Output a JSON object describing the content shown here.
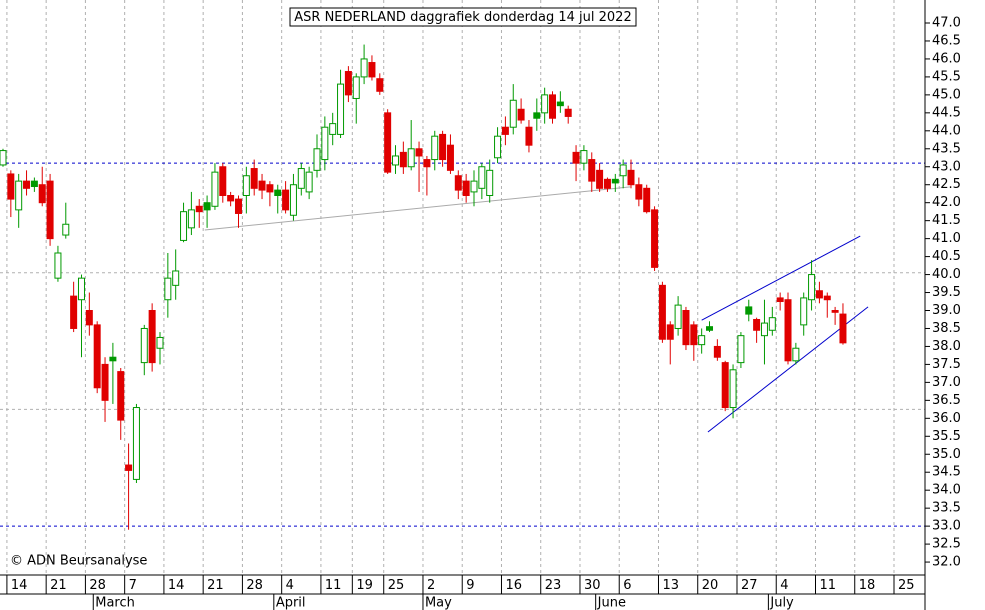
{
  "chart_data": {
    "type": "candlestick",
    "title": "ASR NEDERLAND daggrafiek donderdag 14 jul 2022",
    "copyright": "© ADN Beursanalyse",
    "up_color": "#009900",
    "down_color": "#e00000",
    "x": [
      0,
      1,
      2,
      3,
      4,
      5,
      6,
      7,
      8,
      9,
      10,
      11,
      12,
      13,
      14,
      15,
      16,
      17,
      18,
      19,
      20,
      21,
      22,
      23,
      24,
      25,
      26,
      27,
      28,
      29,
      30,
      31,
      32,
      33,
      34,
      35,
      36,
      37,
      38,
      39,
      40,
      41,
      42,
      43,
      44,
      45,
      46,
      47,
      48,
      49,
      50,
      51,
      52,
      53,
      54,
      55,
      56,
      57,
      58,
      59,
      60,
      61,
      62,
      63,
      64,
      65,
      66,
      67,
      68,
      69,
      70,
      71,
      72,
      73,
      74,
      75,
      76,
      77,
      78,
      79,
      80,
      81,
      82,
      83,
      84,
      85,
      86,
      87,
      88,
      89,
      90,
      91,
      92,
      93,
      94,
      95,
      96,
      97,
      98,
      99,
      100,
      101,
      102,
      103,
      104,
      105,
      106,
      107
    ],
    "open": [
      43.05,
      42.8,
      41.8,
      42.6,
      42.45,
      42.5,
      42.6,
      39.9,
      41.1,
      39.4,
      39.3,
      39.0,
      38.6,
      37.5,
      37.6,
      37.3,
      34.7,
      34.3,
      37.55,
      39.0,
      37.95,
      39.3,
      39.7,
      40.95,
      41.3,
      41.9,
      41.8,
      41.9,
      43.0,
      42.2,
      42.1,
      42.2,
      42.95,
      42.6,
      42.5,
      42.2,
      42.35,
      41.65,
      42.4,
      42.3,
      42.9,
      43.2,
      43.9,
      43.9,
      45.65,
      44.9,
      45.5,
      45.9,
      45.45,
      44.5,
      43.05,
      43.4,
      43.0,
      43.5,
      43.2,
      43.2,
      43.9,
      43.6,
      42.75,
      42.6,
      42.3,
      42.4,
      42.2,
      43.25,
      44.1,
      44.1,
      44.6,
      44.1,
      44.35,
      44.5,
      45.0,
      44.7,
      44.6,
      43.4,
      43.1,
      43.2,
      42.9,
      42.65,
      42.55,
      42.75,
      42.9,
      42.5,
      42.4,
      41.8,
      39.7,
      38.6,
      38.5,
      39.0,
      38.6,
      38.05,
      38.45,
      38.0,
      37.55,
      36.3,
      37.55,
      38.9,
      38.75,
      38.3,
      38.45,
      39.35,
      39.3,
      37.6,
      38.6,
      39.3,
      39.55,
      39.4,
      39.0,
      38.9
    ],
    "high": [
      43.5,
      42.9,
      42.8,
      42.9,
      42.7,
      43.0,
      42.8,
      40.8,
      42.0,
      39.8,
      40.0,
      39.5,
      38.7,
      37.7,
      38.1,
      37.4,
      35.3,
      36.4,
      38.6,
      39.2,
      38.4,
      40.6,
      40.7,
      42.0,
      42.3,
      42.1,
      42.2,
      43.1,
      43.1,
      42.3,
      42.2,
      43.0,
      43.2,
      42.8,
      42.6,
      42.5,
      42.6,
      42.8,
      43.1,
      43.0,
      43.9,
      44.4,
      44.5,
      45.7,
      45.8,
      45.6,
      46.4,
      46.1,
      45.6,
      44.6,
      43.6,
      43.7,
      44.3,
      43.7,
      43.3,
      44.0,
      44.0,
      43.9,
      42.9,
      42.8,
      42.9,
      43.1,
      43.2,
      44.1,
      44.4,
      45.3,
      44.9,
      44.3,
      44.9,
      45.2,
      45.1,
      45.1,
      44.7,
      43.6,
      43.6,
      43.4,
      43.1,
      42.7,
      42.8,
      43.2,
      43.2,
      42.7,
      42.5,
      41.9,
      39.8,
      38.7,
      39.4,
      39.1,
      38.7,
      38.5,
      38.7,
      38.2,
      37.6,
      37.5,
      38.4,
      39.3,
      38.8,
      39.3,
      39.1,
      39.5,
      39.5,
      38.1,
      39.5,
      40.4,
      39.8,
      39.5,
      39.1,
      39.2
    ],
    "low": [
      43.0,
      41.6,
      41.3,
      42.2,
      42.3,
      41.9,
      40.8,
      39.8,
      41.0,
      38.4,
      37.7,
      38.3,
      36.7,
      35.9,
      36.4,
      35.4,
      32.9,
      34.2,
      37.2,
      37.3,
      37.5,
      38.8,
      39.3,
      40.9,
      41.1,
      41.3,
      41.3,
      41.8,
      42.0,
      41.9,
      41.3,
      41.7,
      42.2,
      42.1,
      41.9,
      41.7,
      41.7,
      41.5,
      42.2,
      42.1,
      42.7,
      42.9,
      43.6,
      43.8,
      44.8,
      44.2,
      45.3,
      45.4,
      45.0,
      42.8,
      42.8,
      42.8,
      42.9,
      42.3,
      42.2,
      42.9,
      43.0,
      42.8,
      42.1,
      42.0,
      41.9,
      42.1,
      42.0,
      43.1,
      43.6,
      43.9,
      44.2,
      43.4,
      44.0,
      44.2,
      44.2,
      44.5,
      44.2,
      42.6,
      42.9,
      42.3,
      42.3,
      42.3,
      42.3,
      42.4,
      42.4,
      41.9,
      41.7,
      40.1,
      38.1,
      37.5,
      38.3,
      37.9,
      37.6,
      37.8,
      38.4,
      37.6,
      36.2,
      36.0,
      37.4,
      38.7,
      38.1,
      37.5,
      38.3,
      39.0,
      37.5,
      37.5,
      38.3,
      39.0,
      39.2,
      38.8,
      38.6,
      38.05
    ],
    "close": [
      43.45,
      42.1,
      42.6,
      42.4,
      42.6,
      42.0,
      41.0,
      40.6,
      41.4,
      38.5,
      39.9,
      38.6,
      36.85,
      36.5,
      37.7,
      35.95,
      34.55,
      36.3,
      38.5,
      37.55,
      38.25,
      39.9,
      40.1,
      41.75,
      41.8,
      41.75,
      42.0,
      42.85,
      42.2,
      42.05,
      41.7,
      42.75,
      42.4,
      42.35,
      42.3,
      42.35,
      41.8,
      42.5,
      42.95,
      42.85,
      43.5,
      44.1,
      44.2,
      45.3,
      45.0,
      45.5,
      46.0,
      45.5,
      45.1,
      42.85,
      43.3,
      43.0,
      43.5,
      43.3,
      43.0,
      43.85,
      43.2,
      42.9,
      42.35,
      42.2,
      42.6,
      43.0,
      42.9,
      43.85,
      43.9,
      44.85,
      44.3,
      43.6,
      44.5,
      45.0,
      44.35,
      44.8,
      44.4,
      43.1,
      43.45,
      42.6,
      42.4,
      42.4,
      42.65,
      43.05,
      42.5,
      42.1,
      41.75,
      40.2,
      38.2,
      38.2,
      39.15,
      38.05,
      38.05,
      38.3,
      38.55,
      37.7,
      36.3,
      37.35,
      38.3,
      39.1,
      38.45,
      38.65,
      38.8,
      39.25,
      37.6,
      37.95,
      39.35,
      40.0,
      39.35,
      39.3,
      38.95,
      38.1
    ],
    "xlim": [
      -0.38,
      117.45
    ],
    "ylim": [
      31.64,
      47.64
    ],
    "xticks": [
      {
        "value": 1,
        "label": "14"
      },
      {
        "value": 6,
        "label": "21"
      },
      {
        "value": 11,
        "label": "28"
      },
      {
        "value": 16,
        "label": "7"
      },
      {
        "value": 21,
        "label": "14"
      },
      {
        "value": 26,
        "label": "21"
      },
      {
        "value": 31,
        "label": "28"
      },
      {
        "value": 36,
        "label": "4"
      },
      {
        "value": 41,
        "label": "11"
      },
      {
        "value": 45,
        "label": "19"
      },
      {
        "value": 49,
        "label": "25"
      },
      {
        "value": 54,
        "label": "2"
      },
      {
        "value": 59,
        "label": "9"
      },
      {
        "value": 64,
        "label": "16"
      },
      {
        "value": 69,
        "label": "23"
      },
      {
        "value": 74,
        "label": "30"
      },
      {
        "value": 79,
        "label": "6"
      },
      {
        "value": 84,
        "label": "13"
      },
      {
        "value": 89,
        "label": "20"
      },
      {
        "value": 94,
        "label": "27"
      },
      {
        "value": 99,
        "label": "4"
      },
      {
        "value": 104,
        "label": "11"
      },
      {
        "value": 109,
        "label": "18"
      },
      {
        "value": 114,
        "label": "25"
      }
    ],
    "months": [
      {
        "value": 12,
        "label": "March"
      },
      {
        "value": 35,
        "label": "April"
      },
      {
        "value": 54,
        "label": "May"
      },
      {
        "value": 76,
        "label": "June"
      },
      {
        "value": 98,
        "label": "July"
      }
    ],
    "yticks": [
      {
        "value": 32.0,
        "label": "32.0"
      },
      {
        "value": 32.5,
        "label": "32.5"
      },
      {
        "value": 33.0,
        "label": "33.0"
      },
      {
        "value": 33.5,
        "label": "33.5"
      },
      {
        "value": 34.0,
        "label": "34.0"
      },
      {
        "value": 34.5,
        "label": "34.5"
      },
      {
        "value": 35.0,
        "label": "35.0"
      },
      {
        "value": 35.5,
        "label": "35.5"
      },
      {
        "value": 36.0,
        "label": "36.0"
      },
      {
        "value": 36.5,
        "label": "36.5"
      },
      {
        "value": 37.0,
        "label": "37.0"
      },
      {
        "value": 37.5,
        "label": "37.5"
      },
      {
        "value": 38.0,
        "label": "38.0"
      },
      {
        "value": 38.5,
        "label": "38.5"
      },
      {
        "value": 39.0,
        "label": "39.0"
      },
      {
        "value": 39.5,
        "label": "39.5"
      },
      {
        "value": 40.0,
        "label": "40.0"
      },
      {
        "value": 40.5,
        "label": "40.5"
      },
      {
        "value": 41.0,
        "label": "41.0"
      },
      {
        "value": 41.5,
        "label": "41.5"
      },
      {
        "value": 42.0,
        "label": "42.0"
      },
      {
        "value": 42.5,
        "label": "42.5"
      },
      {
        "value": 43.0,
        "label": "43.0"
      },
      {
        "value": 43.5,
        "label": "43.5"
      },
      {
        "value": 44.0,
        "label": "44.0"
      },
      {
        "value": 44.5,
        "label": "44.5"
      },
      {
        "value": 45.0,
        "label": "45.0"
      },
      {
        "value": 45.5,
        "label": "45.5"
      },
      {
        "value": 46.0,
        "label": "46.0"
      },
      {
        "value": 46.5,
        "label": "46.5"
      },
      {
        "value": 47.0,
        "label": "47.0"
      }
    ],
    "hlines": [
      {
        "value": 43.1,
        "color": "#0000cc"
      },
      {
        "value": 33.0,
        "color": "#0000cc"
      },
      {
        "value": 40.05,
        "color": "#b0b0b0"
      },
      {
        "value": 36.25,
        "color": "#b0b0b0"
      }
    ],
    "trendlines": [
      {
        "x": [
          25.7,
          79.9
        ],
        "y": [
          41.24,
          42.44
        ],
        "color": "#aaaaaa"
      },
      {
        "x": [
          89.0,
          109.2
        ],
        "y": [
          38.73,
          41.07
        ],
        "color": "#0000cc"
      },
      {
        "x": [
          89.8,
          110.2
        ],
        "y": [
          35.62,
          39.1
        ],
        "color": "#0000cc"
      }
    ],
    "grid": true
  }
}
